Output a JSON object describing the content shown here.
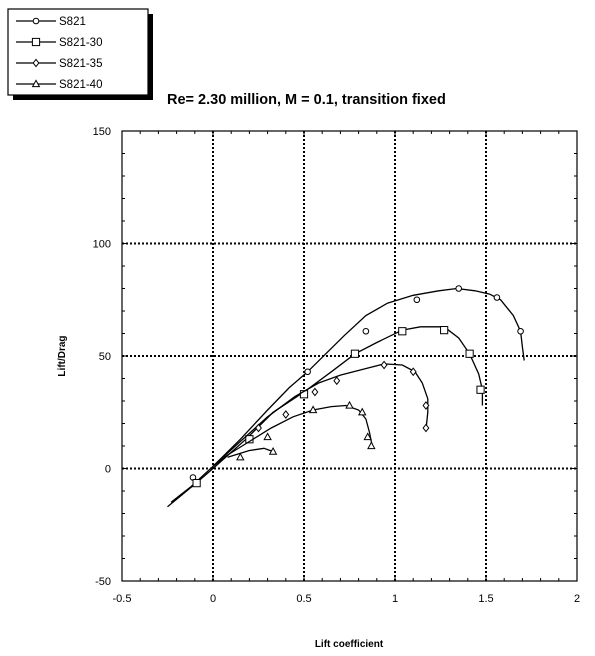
{
  "chart_data": {
    "type": "line",
    "title": "Re= 2.30 million, M   = 0.1, transition fixed",
    "xlabel": "Lift coefficient",
    "ylabel": "Lift/Drag",
    "xlim": [
      -0.5,
      2
    ],
    "ylim": [
      -50,
      150
    ],
    "xticks": [
      "-0.5",
      "0",
      "0.5",
      "1",
      "1.5",
      "2"
    ],
    "yticks": [
      "-50",
      "0",
      "50",
      "100",
      "150"
    ],
    "grid": "dotted major gridlines",
    "legend_position": "top-left",
    "series": [
      {
        "name": "S821",
        "marker": "circle",
        "points": [
          [
            -0.23,
            -15
          ],
          [
            -0.12,
            -8
          ],
          [
            0.0,
            1
          ],
          [
            0.15,
            13
          ],
          [
            0.3,
            26
          ],
          [
            0.42,
            36
          ],
          [
            0.52,
            43
          ],
          [
            0.62,
            51
          ],
          [
            0.72,
            59
          ],
          [
            0.84,
            68
          ],
          [
            0.96,
            73.5
          ],
          [
            1.1,
            77
          ],
          [
            1.24,
            79
          ],
          [
            1.34,
            80
          ],
          [
            1.44,
            79
          ],
          [
            1.52,
            77.5
          ],
          [
            1.58,
            75
          ],
          [
            1.65,
            68
          ],
          [
            1.69,
            61
          ],
          [
            1.7,
            54
          ],
          [
            1.71,
            48
          ]
        ],
        "marked": [
          [
            0.52,
            43
          ],
          [
            0.84,
            61
          ],
          [
            1.12,
            75
          ],
          [
            1.35,
            80
          ],
          [
            1.56,
            76
          ],
          [
            1.69,
            61
          ],
          [
            -0.11,
            -4
          ]
        ]
      },
      {
        "name": "S821-30",
        "marker": "square",
        "points": [
          [
            -0.25,
            -17
          ],
          [
            -0.1,
            -7
          ],
          [
            0.0,
            0
          ],
          [
            0.18,
            13
          ],
          [
            0.33,
            25
          ],
          [
            0.5,
            34
          ],
          [
            0.65,
            43
          ],
          [
            0.78,
            51
          ],
          [
            0.9,
            56
          ],
          [
            1.04,
            61.5
          ],
          [
            1.14,
            63
          ],
          [
            1.27,
            63
          ],
          [
            1.35,
            58
          ],
          [
            1.41,
            51
          ],
          [
            1.46,
            42
          ],
          [
            1.48,
            35
          ],
          [
            1.48,
            28
          ]
        ],
        "marked": [
          [
            -0.09,
            -6.5
          ],
          [
            0.2,
            13
          ],
          [
            0.5,
            33
          ],
          [
            0.78,
            51
          ],
          [
            1.04,
            61
          ],
          [
            1.27,
            61.5
          ],
          [
            1.41,
            51
          ],
          [
            1.47,
            35
          ]
        ]
      },
      {
        "name": "S821-35",
        "marker": "diamond",
        "points": [
          [
            0.0,
            1
          ],
          [
            0.15,
            12
          ],
          [
            0.3,
            23
          ],
          [
            0.45,
            32
          ],
          [
            0.58,
            38
          ],
          [
            0.7,
            41.5
          ],
          [
            0.82,
            44
          ],
          [
            0.94,
            46.5
          ],
          [
            1.04,
            46
          ],
          [
            1.11,
            43
          ],
          [
            1.15,
            38
          ],
          [
            1.18,
            31
          ],
          [
            1.18,
            25
          ],
          [
            1.17,
            17
          ]
        ],
        "marked": [
          [
            0.25,
            18
          ],
          [
            0.4,
            24
          ],
          [
            0.56,
            34
          ],
          [
            0.68,
            39
          ],
          [
            0.94,
            46
          ],
          [
            1.1,
            43
          ],
          [
            1.17,
            28
          ],
          [
            1.17,
            18
          ]
        ]
      },
      {
        "name": "S821-40",
        "marker": "triangle",
        "points": [
          [
            0.0,
            1
          ],
          [
            0.08,
            6
          ],
          [
            0.2,
            12
          ],
          [
            0.32,
            18
          ],
          [
            0.44,
            23
          ],
          [
            0.55,
            26
          ],
          [
            0.65,
            27.5
          ],
          [
            0.73,
            28
          ],
          [
            0.8,
            26
          ],
          [
            0.84,
            22
          ],
          [
            0.86,
            16
          ],
          [
            0.87,
            12
          ],
          [
            0.88,
            9
          ]
        ],
        "marked": [
          [
            0.15,
            5
          ],
          [
            0.3,
            14
          ],
          [
            0.55,
            26
          ],
          [
            0.75,
            28
          ],
          [
            0.82,
            25
          ],
          [
            0.85,
            14
          ],
          [
            0.87,
            10
          ]
        ]
      },
      {
        "name": "",
        "marker": "triangle",
        "points": [
          [
            0.08,
            5
          ],
          [
            0.2,
            8
          ],
          [
            0.28,
            9
          ],
          [
            0.33,
            7.5
          ]
        ],
        "marked": [
          [
            0.33,
            7.5
          ]
        ]
      }
    ]
  }
}
